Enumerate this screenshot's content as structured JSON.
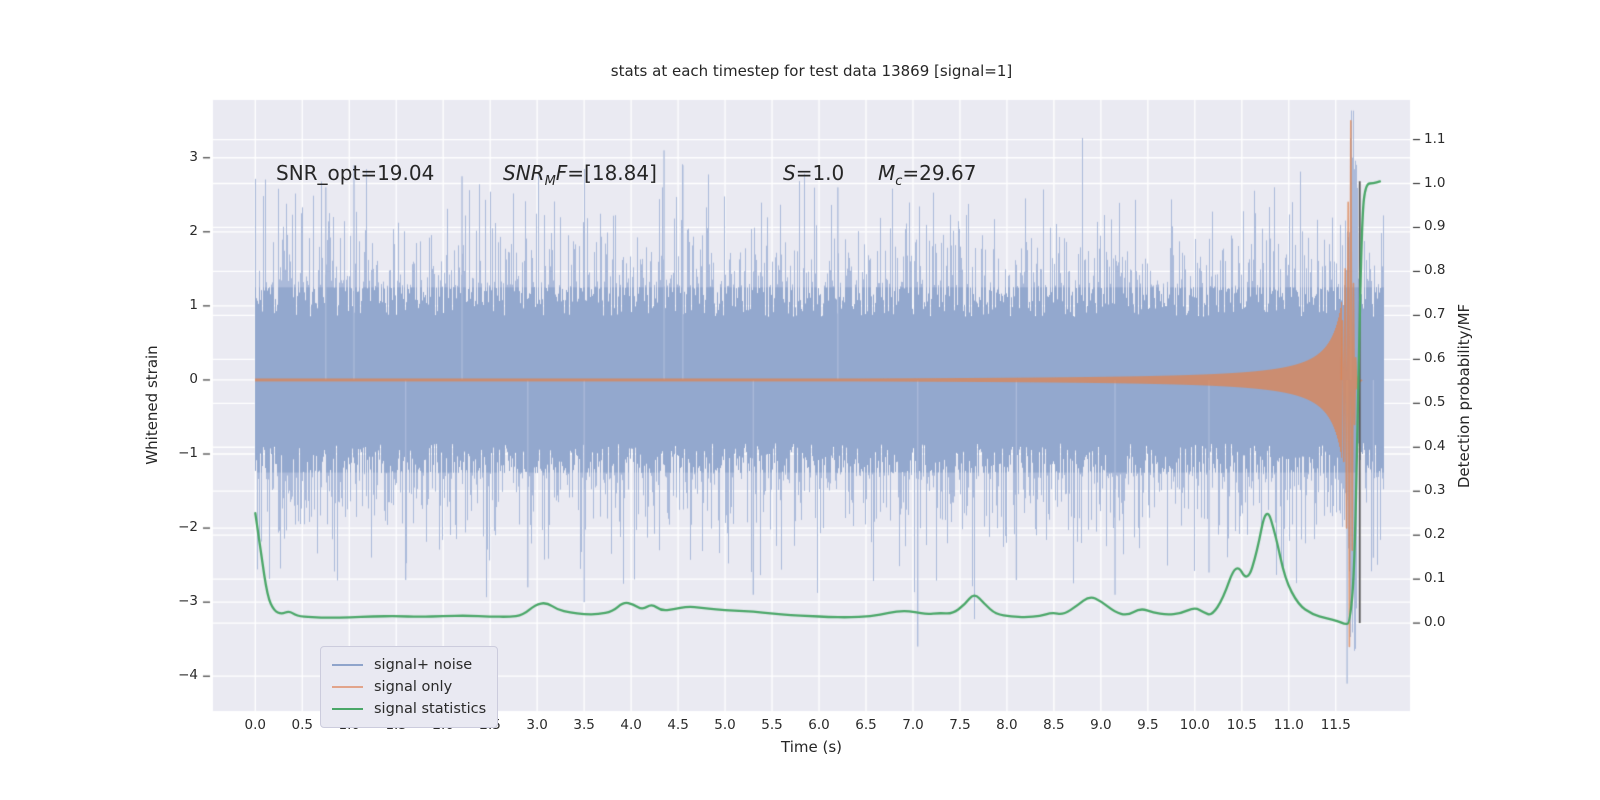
{
  "chart_data": {
    "type": "line",
    "title": "stats at each timestep for test data 13869 [signal=1]",
    "xlabel": "Time (s)",
    "ylabel_left": "Whitened strain",
    "ylabel_right": "Detection probability/MF",
    "xlim": [
      -0.45,
      12.29
    ],
    "ylim_left": [
      -4.47,
      3.78
    ],
    "ylim_right": [
      -0.2,
      1.19
    ],
    "grid": true,
    "legend_position": "lower left",
    "x_ticks": [
      0,
      0.5,
      1,
      1.5,
      2,
      2.5,
      3,
      3.5,
      4,
      4.5,
      5,
      5.5,
      6,
      6.5,
      7,
      7.5,
      8,
      8.5,
      9,
      9.5,
      10,
      10.5,
      11,
      11.5
    ],
    "x_tick_labels": [
      "0.0",
      "0.5",
      "1.0",
      "1.5",
      "2.0",
      "2.5",
      "3.0",
      "3.5",
      "4.0",
      "4.5",
      "5.0",
      "5.5",
      "6.0",
      "6.5",
      "7.0",
      "7.5",
      "8.0",
      "8.5",
      "9.0",
      "9.5",
      "10.0",
      "10.5",
      "11.0",
      "11.5"
    ],
    "y_ticks_left": [
      3,
      2,
      1,
      0,
      -1,
      -2,
      -3,
      -4
    ],
    "y_tick_labels_left": [
      "3",
      "2",
      "1",
      "0",
      "−1",
      "−2",
      "−3",
      "−4"
    ],
    "y_ticks_right": [
      1.1,
      1.0,
      0.9,
      0.8,
      0.7,
      0.6,
      0.5,
      0.4,
      0.3,
      0.2,
      0.1,
      0.0
    ],
    "y_tick_labels_right": [
      "1.1",
      "1.0",
      "0.9",
      "0.8",
      "0.7",
      "0.6",
      "0.5",
      "0.4",
      "0.3",
      "0.2",
      "0.1",
      "0.0"
    ],
    "annotations": [
      {
        "pre": "SNR_opt=19.04"
      },
      {
        "pre_i": "SNR",
        "sub": "M",
        "mid_i": "F",
        "post": "=[18.84]"
      },
      {
        "pre_i": "S",
        "post": "=1.0"
      },
      {
        "pre_i": "M",
        "sub": "c",
        "post": "=29.67"
      }
    ],
    "series": [
      {
        "name": "signal+ noise",
        "axis": "left",
        "style": "noise_band",
        "seed": 13869,
        "t_range": [
          0,
          12.0
        ],
        "core": [
          0.85,
          0.5
        ],
        "core_cap": 1.25,
        "branches": [
          [
            0.55,
            0.75
          ],
          [
            0.2,
            0.85
          ],
          [
            0.055,
            0.8
          ]
        ],
        "extremes": [
          [
            0.75,
            2.6
          ],
          [
            1.05,
            2.9
          ],
          [
            1.6,
            -2.7
          ],
          [
            2.2,
            2.75
          ],
          [
            2.9,
            -2.8
          ],
          [
            3.5,
            -3.0
          ],
          [
            4.35,
            3.1
          ],
          [
            4.55,
            2.9
          ],
          [
            5.3,
            -2.9
          ],
          [
            6.2,
            2.6
          ],
          [
            7.05,
            -3.6
          ],
          [
            8.1,
            -2.7
          ],
          [
            9.15,
            -2.9
          ],
          [
            10.15,
            -2.6
          ],
          [
            11.62,
            -4.1
          ],
          [
            11.66,
            3.25
          ],
          [
            11.9,
            -2.4
          ]
        ]
      },
      {
        "name": "signal only",
        "axis": "left",
        "style": "chirp",
        "t_range": [
          0,
          11.56
        ],
        "t_merge": 11.7,
        "env_coeff": 0.125,
        "env_pow": 1.1,
        "amp_min": 0.02,
        "amp_max": 3.5,
        "dt_min": 0.04,
        "merger_points": [
          [
            11.56,
            0.0
          ],
          [
            11.57,
            0.8
          ],
          [
            11.585,
            -1.1
          ],
          [
            11.6,
            1.5
          ],
          [
            11.615,
            -2.0
          ],
          [
            11.632,
            2.4
          ],
          [
            11.645,
            -3.6
          ],
          [
            11.66,
            3.5
          ],
          [
            11.675,
            -2.3
          ],
          [
            11.688,
            1.3
          ],
          [
            11.7,
            -0.6
          ],
          [
            11.712,
            0.3
          ],
          [
            11.725,
            -0.12
          ],
          [
            11.74,
            0.05
          ],
          [
            11.76,
            -0.02
          ],
          [
            11.78,
            0.0
          ]
        ]
      },
      {
        "name": "signal statistics",
        "axis": "right",
        "style": "line",
        "points": [
          [
            0.0,
            0.25
          ],
          [
            0.06,
            0.16
          ],
          [
            0.13,
            0.06
          ],
          [
            0.2,
            0.028
          ],
          [
            0.28,
            0.02
          ],
          [
            0.36,
            0.028
          ],
          [
            0.44,
            0.016
          ],
          [
            0.6,
            0.013
          ],
          [
            0.8,
            0.012
          ],
          [
            1.0,
            0.013
          ],
          [
            1.25,
            0.015
          ],
          [
            1.5,
            0.016
          ],
          [
            1.75,
            0.014
          ],
          [
            2.0,
            0.016
          ],
          [
            2.25,
            0.017
          ],
          [
            2.5,
            0.015
          ],
          [
            2.7,
            0.014
          ],
          [
            2.85,
            0.018
          ],
          [
            2.98,
            0.042
          ],
          [
            3.1,
            0.047
          ],
          [
            3.22,
            0.03
          ],
          [
            3.35,
            0.024
          ],
          [
            3.5,
            0.02
          ],
          [
            3.65,
            0.02
          ],
          [
            3.8,
            0.026
          ],
          [
            3.92,
            0.048
          ],
          [
            4.02,
            0.043
          ],
          [
            4.12,
            0.03
          ],
          [
            4.22,
            0.044
          ],
          [
            4.32,
            0.028
          ],
          [
            4.45,
            0.031
          ],
          [
            4.6,
            0.038
          ],
          [
            4.75,
            0.035
          ],
          [
            4.9,
            0.031
          ],
          [
            5.1,
            0.028
          ],
          [
            5.3,
            0.026
          ],
          [
            5.5,
            0.022
          ],
          [
            5.7,
            0.018
          ],
          [
            5.9,
            0.016
          ],
          [
            6.1,
            0.014
          ],
          [
            6.3,
            0.013
          ],
          [
            6.55,
            0.015
          ],
          [
            6.75,
            0.024
          ],
          [
            6.9,
            0.028
          ],
          [
            7.02,
            0.025
          ],
          [
            7.15,
            0.02
          ],
          [
            7.28,
            0.023
          ],
          [
            7.42,
            0.021
          ],
          [
            7.55,
            0.042
          ],
          [
            7.65,
            0.069
          ],
          [
            7.76,
            0.044
          ],
          [
            7.88,
            0.02
          ],
          [
            8.05,
            0.015
          ],
          [
            8.2,
            0.013
          ],
          [
            8.35,
            0.016
          ],
          [
            8.48,
            0.024
          ],
          [
            8.6,
            0.019
          ],
          [
            8.75,
            0.04
          ],
          [
            8.88,
            0.062
          ],
          [
            9.0,
            0.05
          ],
          [
            9.15,
            0.025
          ],
          [
            9.28,
            0.017
          ],
          [
            9.42,
            0.034
          ],
          [
            9.56,
            0.024
          ],
          [
            9.7,
            0.019
          ],
          [
            9.85,
            0.022
          ],
          [
            10.0,
            0.036
          ],
          [
            10.1,
            0.024
          ],
          [
            10.18,
            0.017
          ],
          [
            10.3,
            0.055
          ],
          [
            10.44,
            0.14
          ],
          [
            10.56,
            0.092
          ],
          [
            10.66,
            0.16
          ],
          [
            10.76,
            0.27
          ],
          [
            10.86,
            0.2
          ],
          [
            10.96,
            0.1
          ],
          [
            11.1,
            0.042
          ],
          [
            11.25,
            0.02
          ],
          [
            11.4,
            0.011
          ],
          [
            11.52,
            0.005
          ],
          [
            11.6,
            -0.003
          ],
          [
            11.65,
            0.0
          ],
          [
            11.7,
            0.12
          ],
          [
            11.74,
            0.55
          ],
          [
            11.78,
            0.93
          ],
          [
            11.82,
            1.0
          ],
          [
            11.9,
            1.0
          ],
          [
            11.97,
            1.005
          ]
        ]
      }
    ],
    "marker_line": {
      "t": 11.755,
      "p_from": 0.0,
      "p_to": 1.005
    }
  },
  "legend": {
    "items": [
      {
        "label": "signal+ noise",
        "color": "#8fa4cb"
      },
      {
        "label": "signal only",
        "color": "#e2a48b"
      },
      {
        "label": "signal statistics",
        "color": "#4aa768"
      }
    ]
  },
  "colors": {
    "figure_bg": "#ffffff",
    "plot_bg": "#eaeaf2",
    "grid": "#ffffff",
    "noise_core": "#93a8ce",
    "noise_spike": "#abbada",
    "signal": "rgba(221,132,82,0.75)",
    "stat_line": "#4aa768",
    "marker_line": "#5a5a5a",
    "tick_text": "#2b2b2b"
  }
}
